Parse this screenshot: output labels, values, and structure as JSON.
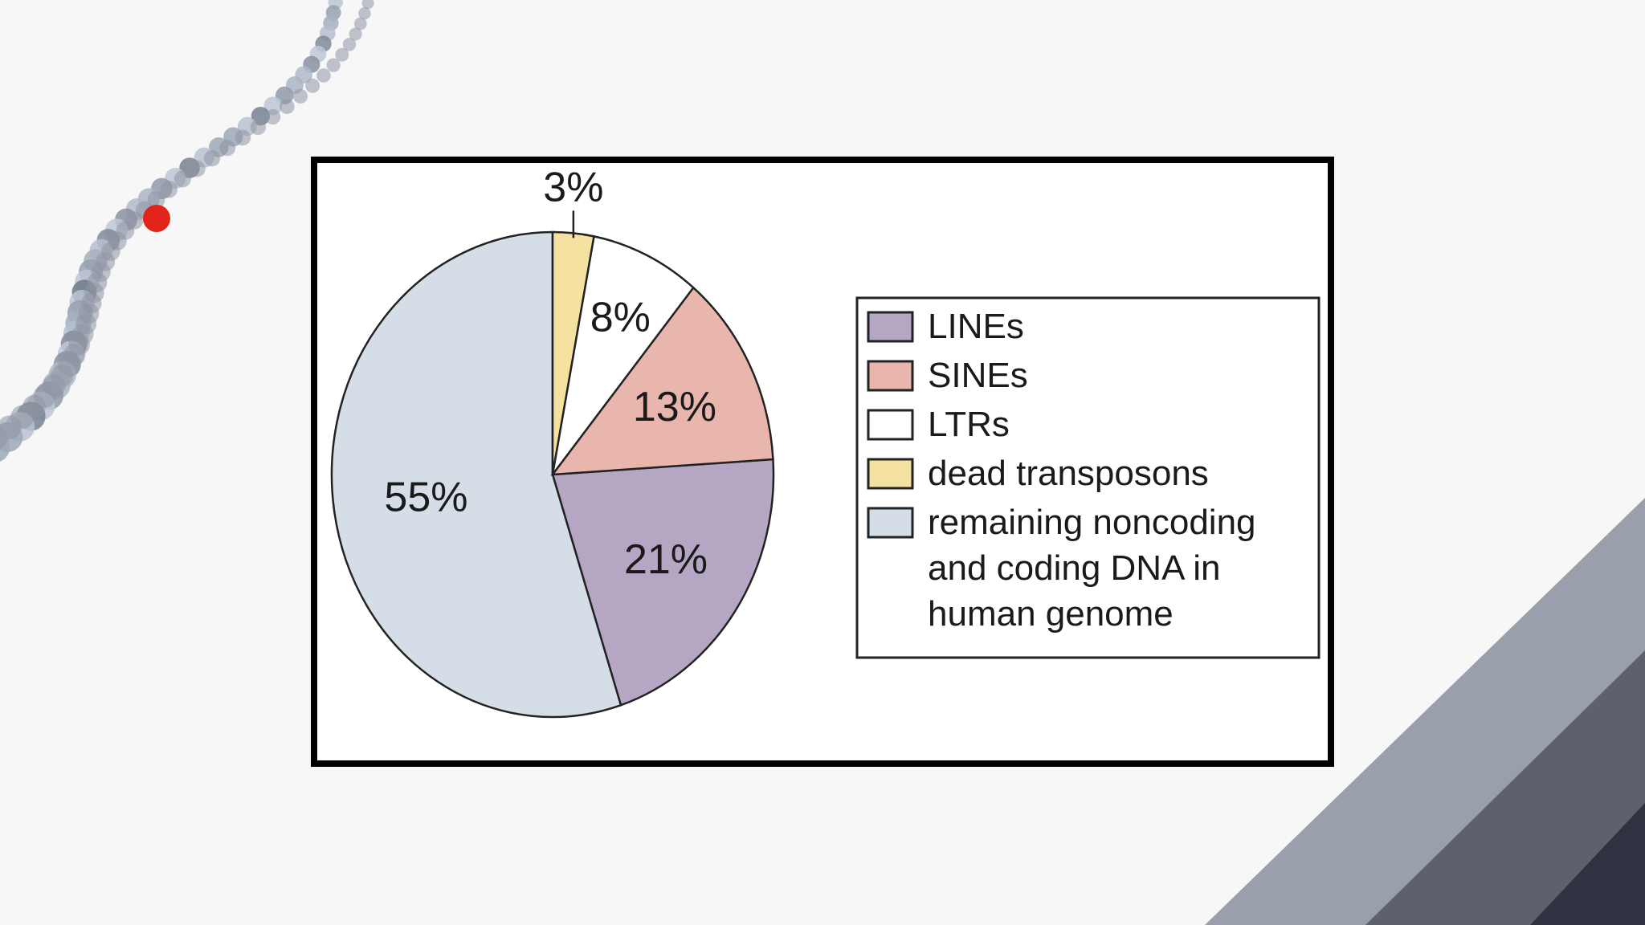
{
  "slide": {
    "corner_colors": [
      "#9aa0ab",
      "#5d616d",
      "#2f3341"
    ]
  },
  "chart_data": {
    "type": "pie",
    "style": "3d",
    "slices": [
      {
        "name": "LINEs",
        "value": 21,
        "label": "21%",
        "color": "#b5a6c4",
        "side_color": "#9886ab"
      },
      {
        "name": "remaining noncoding and coding DNA in human genome",
        "value": 55,
        "label": "55%",
        "color": "#d5dee7",
        "side_color": "#b7c3cf"
      },
      {
        "name": "dead transposons",
        "value": 3,
        "label": "3%",
        "color": "#f6e2a0",
        "side_color": "#d9c47f"
      },
      {
        "name": "LTRs",
        "value": 8,
        "label": "8%",
        "color": "#ffffff",
        "side_color": "#dddddd"
      },
      {
        "name": "SINEs",
        "value": 13,
        "label": "13%",
        "color": "#e8b6ad",
        "side_color": "#cb968c"
      }
    ],
    "legend": {
      "placement": "right",
      "items": [
        {
          "lines": [
            "LINEs"
          ],
          "color": "#b5a6c4"
        },
        {
          "lines": [
            "SINEs"
          ],
          "color": "#e8b6ad"
        },
        {
          "lines": [
            "LTRs"
          ],
          "color": "#ffffff"
        },
        {
          "lines": [
            "dead transposons"
          ],
          "color": "#f6e2a0"
        },
        {
          "lines": [
            "remaining noncoding",
            "and coding DNA in",
            "human genome"
          ],
          "color": "#d5dee7"
        }
      ]
    }
  }
}
